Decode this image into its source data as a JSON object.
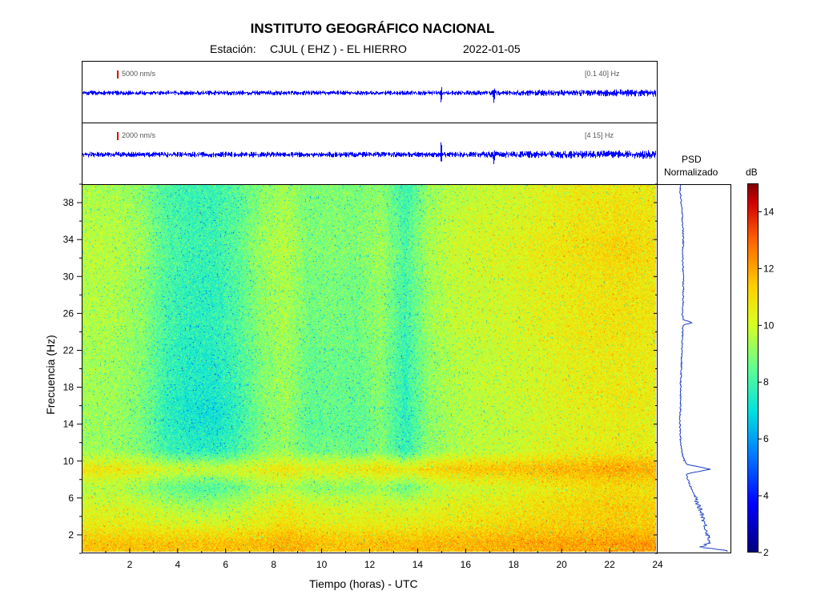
{
  "header": {
    "title": "INSTITUTO GEOGRÁFICO NACIONAL",
    "station_label": "Estación:",
    "station": "CJUL ( EHZ ) - EL HIERRO",
    "date": "2022-01-05"
  },
  "traces": [
    {
      "scale": "5000 nm/s",
      "band": "[0.1 40] Hz"
    },
    {
      "scale": "2000 nm/s",
      "band": "[4 15] Hz"
    }
  ],
  "psd": {
    "title_line1": "PSD",
    "title_line2": "Normalizado"
  },
  "colorbar": {
    "unit": "dB",
    "min": 2,
    "max": 15,
    "ticks": [
      2,
      4,
      6,
      8,
      10,
      12,
      14
    ]
  },
  "colors": {
    "trace": "#0000ff",
    "scale_bar": "#e00000",
    "psd_line": "#1f3fbf"
  },
  "chart_data": {
    "type": "heatmap",
    "xlabel": "Tiempo (horas) - UTC",
    "ylabel": "Frecuencia (Hz)",
    "xlim": [
      0,
      24
    ],
    "ylim": [
      0,
      40
    ],
    "x_ticks": [
      2,
      4,
      6,
      8,
      10,
      12,
      14,
      16,
      18,
      20,
      22,
      24
    ],
    "y_ticks": [
      2,
      6,
      10,
      14,
      18,
      22,
      26,
      30,
      34,
      38
    ],
    "x_centers": [
      0.5,
      1.5,
      2.5,
      3.5,
      4.5,
      5.5,
      6.5,
      7.5,
      8.5,
      9.5,
      10.5,
      11.5,
      12.5,
      13.5,
      14.5,
      15.5,
      16.5,
      17.5,
      18.5,
      19.5,
      20.5,
      21.5,
      22.5,
      23.5
    ],
    "y_centers": [
      1,
      3,
      5,
      7,
      9,
      11,
      13,
      15,
      17,
      19,
      21,
      23,
      25,
      27,
      29,
      31,
      33,
      35,
      37,
      39
    ],
    "values_db": [
      [
        11.5,
        11.5,
        11.5,
        11.5,
        11.5,
        11.5,
        11.5,
        11.6,
        11.8,
        11.6,
        11.5,
        11.5,
        11.6,
        11.6,
        11.7,
        11.7,
        11.8,
        11.8,
        11.9,
        12.0,
        12.0,
        12.0,
        12.1,
        12.1
      ],
      [
        10.6,
        10.6,
        10.5,
        10.3,
        10.3,
        10.3,
        10.4,
        10.6,
        11.0,
        10.7,
        10.6,
        10.6,
        10.6,
        10.6,
        10.7,
        10.8,
        10.9,
        11.0,
        11.1,
        11.2,
        11.3,
        11.3,
        11.4,
        11.3
      ],
      [
        10.2,
        10.2,
        10.0,
        9.6,
        9.4,
        9.3,
        9.6,
        10.1,
        10.6,
        10.2,
        10.1,
        10.1,
        10.1,
        10.0,
        10.3,
        10.5,
        10.6,
        10.7,
        10.8,
        11.0,
        11.1,
        11.2,
        11.3,
        11.2
      ],
      [
        9.7,
        9.6,
        9.3,
        8.6,
        8.3,
        8.2,
        8.6,
        9.3,
        9.6,
        9.0,
        9.1,
        9.0,
        9.4,
        8.6,
        9.5,
        9.9,
        10.1,
        10.2,
        10.4,
        10.6,
        10.8,
        10.9,
        11.0,
        10.9
      ],
      [
        10.8,
        10.7,
        10.5,
        10.1,
        10.0,
        9.9,
        10.1,
        10.5,
        10.9,
        10.4,
        10.5,
        10.6,
        11.0,
        10.6,
        11.1,
        11.3,
        11.4,
        11.5,
        11.6,
        11.7,
        11.8,
        11.9,
        12.0,
        11.9
      ],
      [
        9.3,
        9.2,
        8.9,
        8.0,
        7.7,
        7.6,
        8.1,
        8.9,
        9.3,
        8.6,
        8.7,
        8.5,
        9.0,
        7.8,
        9.1,
        9.6,
        9.8,
        9.9,
        10.1,
        10.3,
        10.5,
        10.6,
        10.7,
        10.6
      ],
      [
        9.3,
        9.2,
        8.8,
        7.8,
        7.4,
        7.3,
        7.9,
        8.8,
        9.2,
        8.4,
        8.5,
        8.4,
        8.9,
        7.7,
        9.0,
        9.5,
        9.7,
        9.8,
        10.0,
        10.2,
        10.4,
        10.5,
        10.6,
        10.5
      ],
      [
        9.3,
        9.2,
        8.8,
        7.7,
        7.2,
        7.1,
        7.8,
        8.8,
        9.2,
        8.4,
        8.5,
        8.4,
        8.9,
        7.6,
        9.0,
        9.5,
        9.7,
        9.8,
        10.0,
        10.2,
        10.4,
        10.5,
        10.6,
        10.5
      ],
      [
        9.4,
        9.3,
        8.9,
        7.8,
        7.4,
        7.3,
        7.9,
        8.9,
        9.3,
        8.5,
        8.6,
        8.5,
        9.0,
        7.7,
        9.1,
        9.6,
        9.8,
        9.9,
        10.1,
        10.3,
        10.5,
        10.6,
        10.7,
        10.6
      ],
      [
        9.4,
        9.3,
        8.9,
        7.9,
        7.5,
        7.4,
        8.0,
        8.9,
        9.3,
        8.5,
        8.6,
        8.5,
        9.0,
        7.8,
        9.1,
        9.6,
        9.8,
        9.9,
        10.1,
        10.3,
        10.5,
        10.6,
        10.7,
        10.6
      ],
      [
        9.4,
        9.3,
        8.9,
        7.9,
        7.5,
        7.5,
        8.0,
        8.9,
        9.3,
        8.5,
        8.6,
        8.5,
        9.0,
        7.8,
        9.1,
        9.6,
        9.8,
        9.9,
        10.1,
        10.3,
        10.5,
        10.6,
        10.7,
        10.6
      ],
      [
        9.5,
        9.4,
        9.0,
        8.0,
        7.6,
        7.6,
        8.1,
        9.0,
        9.4,
        8.6,
        8.7,
        8.6,
        9.1,
        7.9,
        9.2,
        9.7,
        9.9,
        10.0,
        10.2,
        10.4,
        10.6,
        10.7,
        10.8,
        10.7
      ],
      [
        9.6,
        9.5,
        9.1,
        8.1,
        7.7,
        7.7,
        8.2,
        9.1,
        9.5,
        8.7,
        8.8,
        8.7,
        9.2,
        8.0,
        9.3,
        9.8,
        10.0,
        10.1,
        10.3,
        10.5,
        10.7,
        10.8,
        10.9,
        10.8
      ],
      [
        9.6,
        9.5,
        9.1,
        8.1,
        7.7,
        7.7,
        8.2,
        9.1,
        9.5,
        8.7,
        8.8,
        8.7,
        9.2,
        8.0,
        9.3,
        9.8,
        10.0,
        10.1,
        10.3,
        10.5,
        10.7,
        10.8,
        10.9,
        10.8
      ],
      [
        9.6,
        9.5,
        9.1,
        8.1,
        7.7,
        7.7,
        8.2,
        9.1,
        9.5,
        8.7,
        8.8,
        8.7,
        9.2,
        8.0,
        9.3,
        9.8,
        10.0,
        10.1,
        10.3,
        10.5,
        10.7,
        10.8,
        10.9,
        10.8
      ],
      [
        9.7,
        9.6,
        9.2,
        8.2,
        7.8,
        7.8,
        8.3,
        9.2,
        9.6,
        8.8,
        8.9,
        8.8,
        9.3,
        8.1,
        9.4,
        9.9,
        10.1,
        10.2,
        10.4,
        10.6,
        10.8,
        10.9,
        11.0,
        10.9
      ],
      [
        9.8,
        9.7,
        9.3,
        8.3,
        7.9,
        7.9,
        8.4,
        9.3,
        9.7,
        8.9,
        9.0,
        8.9,
        9.4,
        8.2,
        9.5,
        10.0,
        10.2,
        10.3,
        10.5,
        10.7,
        10.9,
        11.0,
        11.2,
        11.0
      ],
      [
        9.7,
        9.6,
        9.2,
        8.3,
        7.9,
        7.9,
        8.4,
        9.2,
        9.6,
        8.9,
        9.0,
        8.9,
        9.3,
        8.1,
        9.4,
        9.9,
        10.1,
        10.2,
        10.4,
        10.6,
        10.8,
        10.9,
        11.0,
        10.9
      ],
      [
        9.6,
        9.5,
        9.1,
        8.2,
        7.9,
        7.9,
        8.3,
        9.1,
        9.5,
        8.8,
        8.9,
        8.8,
        9.2,
        8.0,
        9.3,
        9.8,
        10.0,
        10.1,
        10.3,
        10.5,
        10.7,
        10.8,
        10.9,
        10.8
      ],
      [
        9.5,
        9.4,
        9.0,
        8.2,
        7.9,
        7.9,
        8.3,
        9.0,
        9.4,
        8.8,
        8.9,
        8.8,
        9.1,
        7.9,
        9.2,
        9.7,
        9.9,
        10.0,
        10.2,
        10.4,
        10.6,
        10.7,
        10.8,
        10.7
      ]
    ],
    "psd_profile": {
      "frequency_hz": [
        0.1,
        0.5,
        1,
        2,
        3,
        4,
        5,
        6,
        7,
        8,
        8.5,
        9,
        9.5,
        10,
        11,
        12,
        14,
        16,
        18,
        20,
        22,
        24,
        24.7,
        25,
        25.3,
        26,
        28,
        30,
        32,
        34,
        36,
        38,
        40
      ],
      "normalized": [
        1.0,
        0.6,
        0.74,
        0.7,
        0.66,
        0.63,
        0.57,
        0.52,
        0.46,
        0.41,
        0.4,
        0.75,
        0.41,
        0.36,
        0.33,
        0.31,
        0.3,
        0.31,
        0.31,
        0.32,
        0.33,
        0.34,
        0.34,
        0.49,
        0.34,
        0.34,
        0.35,
        0.35,
        0.34,
        0.35,
        0.34,
        0.32,
        0.3
      ]
    }
  }
}
